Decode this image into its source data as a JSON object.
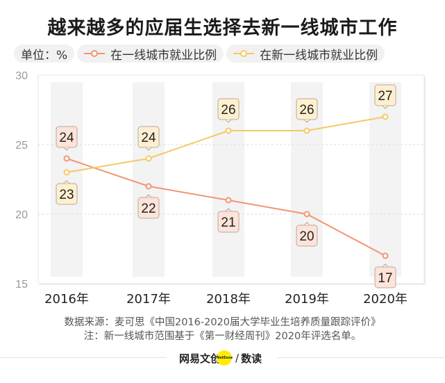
{
  "title": "越来越多的应届生选择去新一线城市工作",
  "legend": {
    "unit": "单位：%"
  },
  "chart_data": {
    "type": "line",
    "title": "越来越多的应届生选择去新一线城市工作",
    "categories": [
      "2016年",
      "2017年",
      "2018年",
      "2019年",
      "2020年"
    ],
    "series": [
      {
        "name": "在一线城市就业比例",
        "values": [
          24,
          22,
          21,
          20,
          17
        ],
        "color": "#f29473"
      },
      {
        "name": "在新一线城市就业比例",
        "values": [
          23,
          24,
          26,
          26,
          27
        ],
        "color": "#f6c866"
      }
    ],
    "ylim": [
      15,
      30
    ],
    "yticks": [
      15,
      20,
      25,
      30
    ],
    "grid": true,
    "legend_position": "top-left"
  },
  "source": {
    "line1": "数据来源：麦可思《中国2016-2020届大学毕业生培养质量跟踪评价》",
    "line2": "注：新一线城市范围基于《第一财经周刊》2020年评选名单。"
  },
  "footer": {
    "logo_left": "网易文创",
    "logo_badge": "NetEase",
    "logo_sep": "/",
    "logo_right": "数读"
  }
}
